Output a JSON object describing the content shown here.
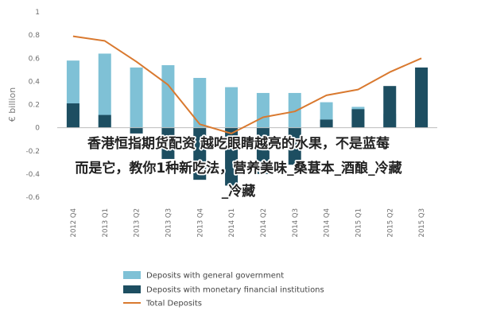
{
  "chart_data": {
    "type": "bar",
    "categories": [
      "2012 Q4",
      "2013 Q1",
      "2013 Q2",
      "2013 Q3",
      "2013 Q4",
      "2014 Q1",
      "2014 Q2",
      "2014 Q3",
      "2014 Q4",
      "2015 Q1",
      "2015 Q2",
      "2015 Q3"
    ],
    "series": [
      {
        "name": "Deposits with general government",
        "kind": "bar",
        "color": "#7fc1d6",
        "values": [
          0.58,
          0.64,
          0.52,
          0.54,
          0.43,
          0.35,
          0.3,
          0.3,
          0.22,
          0.18,
          0.12,
          0.08
        ]
      },
      {
        "name": "Deposits with monetary financial institutions",
        "kind": "bar",
        "color": "#1d4e61",
        "values": [
          0.21,
          0.11,
          -0.05,
          -0.27,
          -0.45,
          -0.5,
          -0.4,
          -0.32,
          0.07,
          0.16,
          0.36,
          0.52
        ]
      },
      {
        "name": "Total Deposits",
        "kind": "line",
        "color": "#d9792f",
        "values": [
          0.79,
          0.75,
          0.57,
          0.37,
          0.03,
          -0.05,
          0.09,
          0.14,
          0.28,
          0.33,
          0.48,
          0.6
        ]
      }
    ],
    "ylabel": "€ billion",
    "ylim": [
      -0.6,
      1.0
    ],
    "yticks": [
      -0.6,
      -0.4,
      -0.2,
      0,
      0.2,
      0.4,
      0.6,
      0.8,
      1
    ],
    "ytick_labels": [
      "-0.6",
      "-0.4",
      "-0.2",
      "0",
      "0.2",
      "0.4",
      "0.6",
      "0.8",
      "1"
    ],
    "grid": false,
    "legend_position": "bottom"
  },
  "overlay": {
    "line1": "香港恒指期货配资 越吃眼睛越亮的水果，不是蓝莓",
    "line2": "而是它，教你1种新吃法，营养美味_桑葚本_酒酿_冷藏",
    "line3": "_冷藏"
  }
}
